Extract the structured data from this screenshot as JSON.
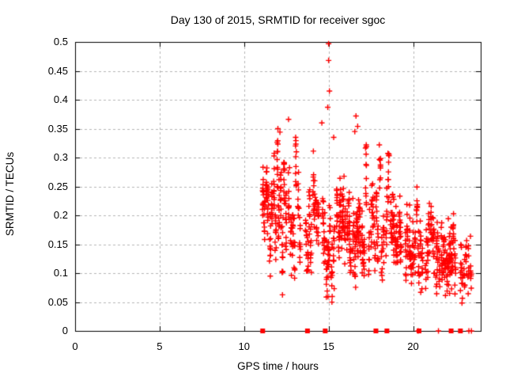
{
  "chart_data": {
    "type": "scatter",
    "title": "Day 130 of 2015, SRMTID for receiver sgoc",
    "xlabel": "GPS time / hours",
    "ylabel": "SRMTID / TECUs",
    "xlim": [
      0,
      24
    ],
    "ylim": [
      0,
      0.5
    ],
    "x_ticks": [
      0,
      5,
      10,
      15,
      20
    ],
    "x_tick_labels": [
      "0",
      "5",
      "10",
      "15",
      "20"
    ],
    "y_ticks": [
      0,
      0.05,
      0.1,
      0.15,
      0.2,
      0.25,
      0.3,
      0.35,
      0.4,
      0.45,
      0.5
    ],
    "y_tick_labels": [
      "0",
      "0.05",
      "0.1",
      "0.15",
      "0.2",
      "0.25",
      "0.3",
      "0.35",
      "0.4",
      "0.45",
      "0.5"
    ],
    "grid": true,
    "legend": "none",
    "marker": "plus",
    "colors": {
      "marker": "#ff0000",
      "grid": "#b5b5b5",
      "axis": "#000000",
      "background": "#ffffff",
      "text": "#000000"
    },
    "seed": 2015130,
    "data_x_range_hours": [
      11.05,
      23.5
    ],
    "cluster_fields": [
      "x_start",
      "x_end",
      "count",
      "y_mode",
      "y_spread",
      "y_min",
      "y_max",
      "n_columns"
    ],
    "clusters": [
      [
        11.05,
        12.55,
        170,
        0.215,
        0.05,
        0.03,
        0.34,
        14
      ],
      [
        12.6,
        13.35,
        70,
        0.2,
        0.055,
        0.05,
        0.335,
        7
      ],
      [
        13.6,
        14.45,
        80,
        0.185,
        0.055,
        0.04,
        0.32,
        8
      ],
      [
        14.6,
        15.35,
        80,
        0.17,
        0.06,
        0.04,
        0.335,
        7
      ],
      [
        15.45,
        16.35,
        110,
        0.2,
        0.045,
        0.07,
        0.31,
        9
      ],
      [
        16.4,
        17.25,
        95,
        0.19,
        0.055,
        0.02,
        0.325,
        8
      ],
      [
        17.35,
        18.3,
        85,
        0.18,
        0.05,
        0.05,
        0.3,
        9
      ],
      [
        18.4,
        19.35,
        95,
        0.175,
        0.05,
        0.03,
        0.31,
        9
      ],
      [
        19.5,
        20.6,
        100,
        0.14,
        0.05,
        0.03,
        0.285,
        10
      ],
      [
        20.7,
        21.6,
        85,
        0.13,
        0.05,
        0.015,
        0.27,
        9
      ],
      [
        21.65,
        22.55,
        105,
        0.13,
        0.045,
        0.04,
        0.26,
        9
      ],
      [
        22.75,
        23.45,
        45,
        0.11,
        0.045,
        0.02,
        0.205,
        6
      ]
    ],
    "outliers": [
      [
        15.0,
        0.497
      ],
      [
        15.0,
        0.468
      ],
      [
        15.05,
        0.415
      ],
      [
        14.95,
        0.387
      ],
      [
        14.6,
        0.36
      ],
      [
        12.63,
        0.366
      ],
      [
        12.0,
        0.35
      ],
      [
        12.12,
        0.344
      ],
      [
        16.62,
        0.372
      ],
      [
        16.72,
        0.354
      ],
      [
        16.55,
        0.345
      ],
      [
        13.05,
        0.335
      ],
      [
        15.3,
        0.335
      ],
      [
        18.0,
        0.322
      ]
    ],
    "zero_square_markers_x": [
      11.1,
      13.75,
      14.8,
      17.8,
      18.45,
      20.35,
      22.25,
      22.8
    ],
    "zero_plus_markers_x": [
      20.3,
      21.5,
      23.3,
      23.45
    ]
  }
}
